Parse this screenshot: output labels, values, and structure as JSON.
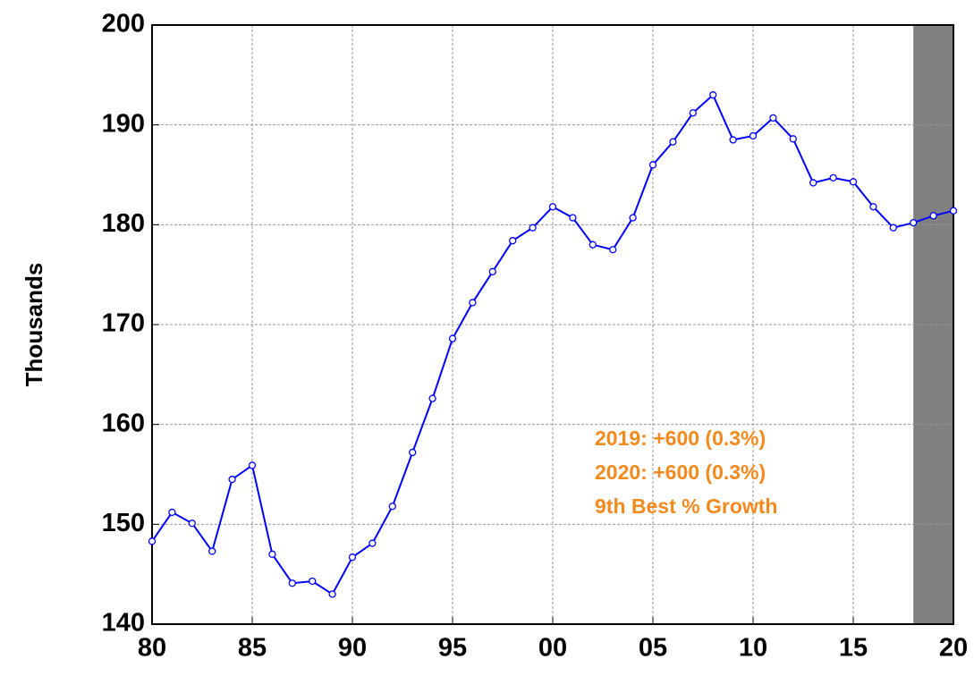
{
  "chart_data": {
    "type": "line",
    "y_label": "Thousands",
    "x": [
      1980,
      1981,
      1982,
      1983,
      1984,
      1985,
      1986,
      1987,
      1988,
      1989,
      1990,
      1991,
      1992,
      1993,
      1994,
      1995,
      1996,
      1997,
      1998,
      1999,
      2000,
      2001,
      2002,
      2003,
      2004,
      2005,
      2006,
      2007,
      2008,
      2009,
      2010,
      2011,
      2012,
      2013,
      2014,
      2015,
      2016,
      2017,
      2018,
      2019,
      2020
    ],
    "series": [
      {
        "color": "#0000ff",
        "values": [
          148.3,
          151.2,
          150.1,
          147.3,
          154.5,
          155.9,
          147.0,
          144.1,
          144.3,
          143.0,
          146.7,
          148.1,
          151.8,
          157.2,
          162.6,
          168.6,
          172.2,
          175.3,
          178.4,
          179.7,
          181.8,
          180.7,
          178.0,
          177.5,
          180.7,
          186.0,
          188.3,
          191.2,
          193.0,
          188.5,
          188.9,
          190.7,
          188.6,
          184.2,
          184.7,
          184.3,
          181.8,
          179.7,
          180.2,
          180.9,
          181.4
        ]
      }
    ],
    "xlim": [
      1980,
      2020
    ],
    "xticks": [
      {
        "value": 1980,
        "label": "80"
      },
      {
        "value": 1985,
        "label": "85"
      },
      {
        "value": 1990,
        "label": "90"
      },
      {
        "value": 1995,
        "label": "95"
      },
      {
        "value": 2000,
        "label": "00"
      },
      {
        "value": 2005,
        "label": "05"
      },
      {
        "value": 2010,
        "label": "10"
      },
      {
        "value": 2015,
        "label": "15"
      },
      {
        "value": 2020,
        "label": "20"
      }
    ],
    "ylim": [
      140,
      200
    ],
    "yticks": [
      140,
      150,
      160,
      170,
      180,
      190,
      200
    ],
    "grid": true,
    "shaded_region": {
      "x": [
        2018,
        2020
      ],
      "color": "#808080"
    },
    "annotations": [
      "2019: +600 (0.3%)",
      "2020: +600 (0.3%)",
      "9th Best % Growth"
    ],
    "annotation_color": "#f28a1e"
  }
}
